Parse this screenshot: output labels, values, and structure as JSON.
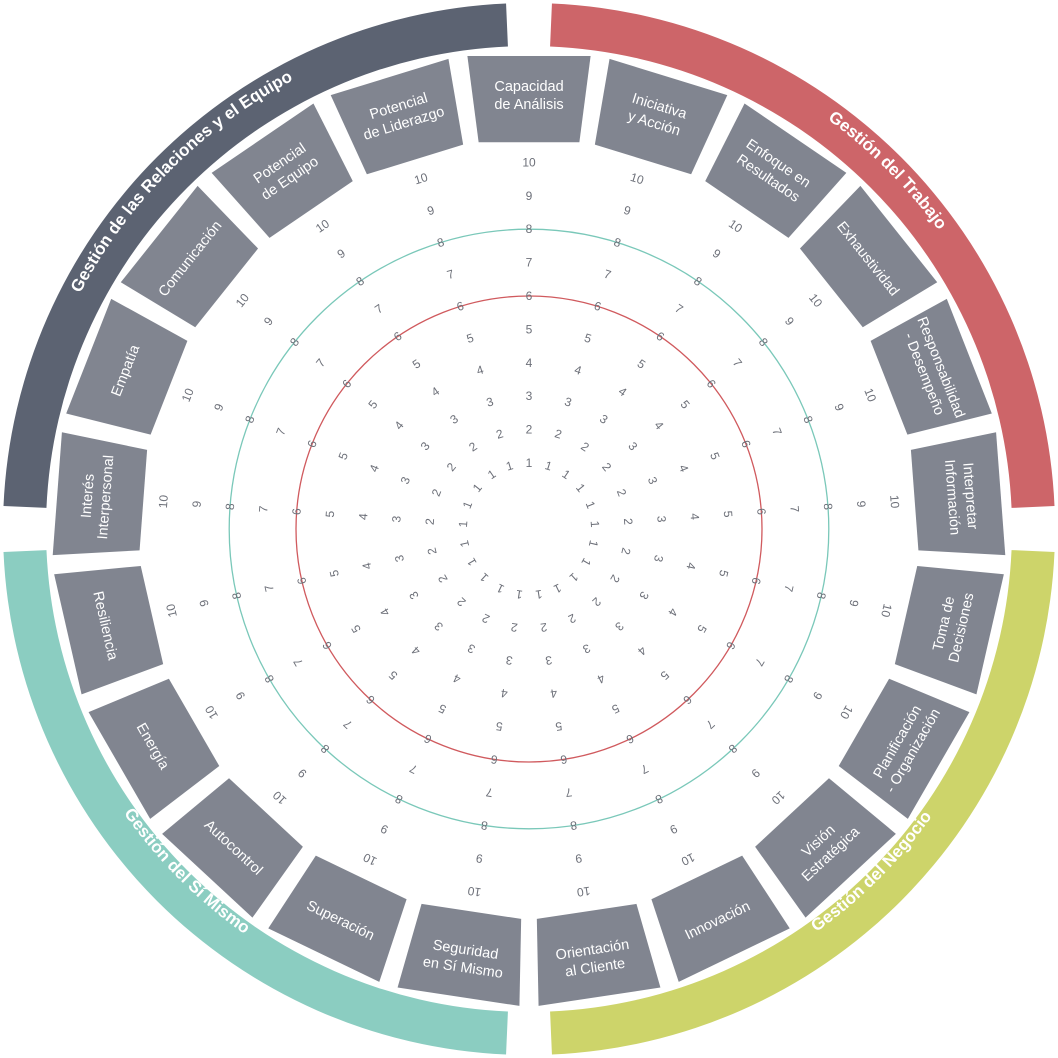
{
  "groups": [
    {
      "name": "Gestión del Trabajo",
      "color": "#cd6569"
    },
    {
      "name": "Gestión del Negocio",
      "color": "#cdd46a"
    },
    {
      "name": "Gestión del Sí Mismo",
      "color": "#8bcdc1"
    },
    {
      "name": "Gestión de las Relaciones y el Equipo",
      "color": "#5c6372"
    }
  ],
  "competencies": [
    "Capacidad de Análisis",
    "Iniciativa y Acción",
    "Enfoque en Resultados",
    "Exhaustividad",
    "Responsabilidad - Desempeño",
    "Interpretar Información",
    "Toma de Decisiones",
    "Planificación - Organización",
    "Visión Estratégica",
    "Innovación",
    "Orientación al Cliente",
    "Seguridad en Sí Mismo",
    "Superación",
    "Autocontrol",
    "Energía",
    "Resiliencia",
    "Interés Interpersonal",
    "Empatía",
    "Comunicación",
    "Potencial de Equipo",
    "Potencial de Liderazgo"
  ],
  "scale": [
    "1",
    "2",
    "3",
    "4",
    "5",
    "6",
    "7",
    "8",
    "9",
    "10"
  ],
  "colors": {
    "segment": "#818590",
    "tick_text": "#6d7079",
    "ring_low": "#d05a5e",
    "ring_high": "#7ac8b9"
  },
  "reference_rings": [
    {
      "level": 6,
      "color": "#d05a5e"
    },
    {
      "level": 8,
      "color": "#7ac8b9"
    }
  ]
}
